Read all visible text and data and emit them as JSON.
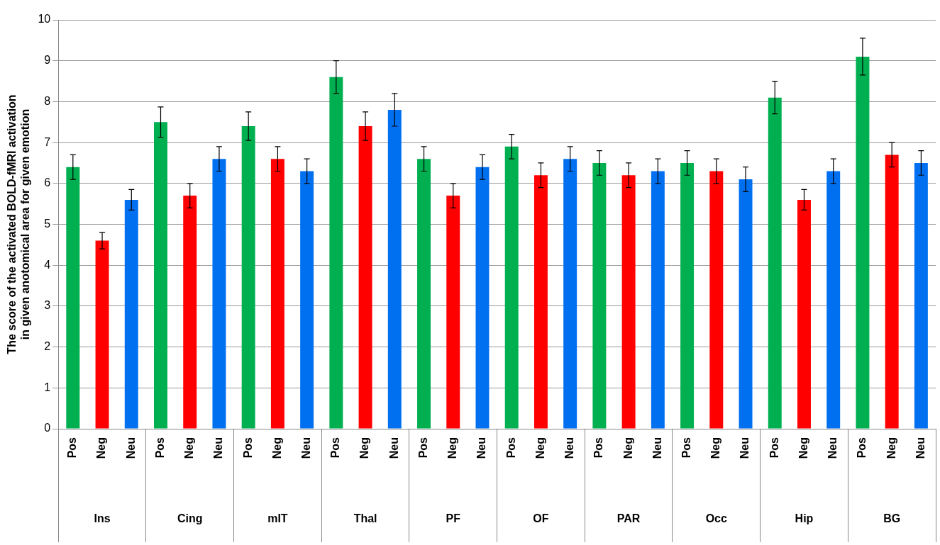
{
  "chart_data": {
    "type": "bar",
    "ylabel": "The score of the activated BOLD-fMRI activation in given anotomical area for given emotion",
    "categories": [
      "Ins",
      "Cing",
      "mIT",
      "Thal",
      "PF",
      "OF",
      "PAR",
      "Occ",
      "Hip",
      "BG"
    ],
    "series": [
      {
        "name": "Pos",
        "color": "#00b050",
        "values": [
          6.4,
          7.5,
          7.4,
          8.6,
          6.6,
          6.9,
          6.5,
          6.5,
          8.1,
          9.1
        ],
        "errors": [
          0.3,
          0.37,
          0.35,
          0.4,
          0.3,
          0.3,
          0.3,
          0.3,
          0.4,
          0.45
        ]
      },
      {
        "name": "Neg",
        "color": "#ff0000",
        "values": [
          4.6,
          5.7,
          6.6,
          7.4,
          5.7,
          6.2,
          6.2,
          6.3,
          5.6,
          6.7
        ],
        "errors": [
          0.2,
          0.3,
          0.3,
          0.35,
          0.3,
          0.3,
          0.3,
          0.3,
          0.25,
          0.3
        ]
      },
      {
        "name": "Neu",
        "color": "#0070f0",
        "values": [
          5.6,
          6.6,
          6.3,
          7.8,
          6.4,
          6.6,
          6.3,
          6.1,
          6.3,
          6.5
        ],
        "errors": [
          0.25,
          0.3,
          0.3,
          0.4,
          0.3,
          0.3,
          0.3,
          0.3,
          0.3,
          0.3
        ]
      }
    ],
    "ylim": [
      0,
      10
    ],
    "yticks": [
      0,
      1,
      2,
      3,
      4,
      5,
      6,
      7,
      8,
      9,
      10
    ],
    "grid": "y",
    "legend": false
  }
}
